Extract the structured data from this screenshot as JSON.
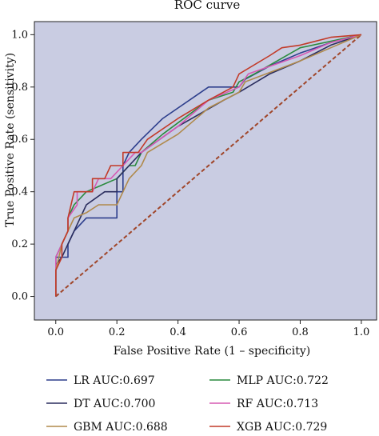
{
  "chart_data": {
    "type": "line",
    "title": "ROC curve",
    "xlabel": "False Positive Rate (1 – specificity)",
    "ylabel": "True Positive Rate (sensitivity)",
    "xlim": [
      -0.07,
      1.05
    ],
    "ylim": [
      -0.09,
      1.05
    ],
    "xticks": [
      "0.0",
      "0.2",
      "0.4",
      "0.6",
      "0.8",
      "1.0"
    ],
    "yticks": [
      "0.0",
      "0.2",
      "0.4",
      "0.6",
      "0.8",
      "1.0"
    ],
    "grid": false,
    "legend_position": "bottom",
    "background_color": "#c9cce2",
    "reference_line": {
      "x": [
        0,
        1
      ],
      "y": [
        0,
        1
      ],
      "color": "#a0462a",
      "style": "dashed"
    },
    "series": [
      {
        "name": "LR AUC:0.697",
        "color": "#2d3e8c",
        "x": [
          0,
          0,
          0.04,
          0.04,
          0.06,
          0.1,
          0.2,
          0.2,
          0.22,
          0.22,
          0.24,
          0.28,
          0.35,
          0.5,
          0.6,
          0.62,
          0.7,
          0.8,
          0.9,
          1
        ],
        "y": [
          0,
          0.15,
          0.15,
          0.2,
          0.25,
          0.3,
          0.3,
          0.4,
          0.4,
          0.5,
          0.55,
          0.6,
          0.68,
          0.8,
          0.8,
          0.83,
          0.88,
          0.93,
          0.97,
          1
        ]
      },
      {
        "name": "MLP AUC:0.722",
        "color": "#2a8a3e",
        "x": [
          0,
          0,
          0.02,
          0.02,
          0.04,
          0.04,
          0.06,
          0.1,
          0.14,
          0.2,
          0.24,
          0.26,
          0.28,
          0.35,
          0.5,
          0.58,
          0.6,
          0.65,
          0.8,
          1
        ],
        "y": [
          0,
          0.15,
          0.2,
          0.2,
          0.25,
          0.3,
          0.35,
          0.4,
          0.42,
          0.45,
          0.5,
          0.5,
          0.55,
          0.62,
          0.75,
          0.78,
          0.82,
          0.85,
          0.95,
          1
        ]
      },
      {
        "name": "DT AUC:0.700",
        "color": "#2a2d5e",
        "x": [
          0,
          0,
          0.02,
          0.04,
          0.06,
          0.08,
          0.1,
          0.16,
          0.18,
          0.2,
          0.2,
          0.24,
          0.28,
          0.4,
          0.55,
          0.6,
          0.7,
          0.8,
          0.9,
          1
        ],
        "y": [
          0,
          0.12,
          0.15,
          0.2,
          0.25,
          0.3,
          0.35,
          0.4,
          0.4,
          0.4,
          0.45,
          0.5,
          0.55,
          0.65,
          0.75,
          0.78,
          0.85,
          0.9,
          0.96,
          1
        ]
      },
      {
        "name": "RF AUC:0.713",
        "color": "#d65ab4",
        "x": [
          0,
          0,
          0.02,
          0.04,
          0.04,
          0.07,
          0.07,
          0.12,
          0.14,
          0.18,
          0.22,
          0.26,
          0.28,
          0.4,
          0.5,
          0.6,
          0.63,
          0.8,
          0.9,
          1
        ],
        "y": [
          0,
          0.15,
          0.2,
          0.25,
          0.3,
          0.35,
          0.4,
          0.4,
          0.45,
          0.45,
          0.5,
          0.55,
          0.55,
          0.65,
          0.75,
          0.8,
          0.85,
          0.92,
          0.97,
          1
        ]
      },
      {
        "name": "GBM AUC:0.688",
        "color": "#b08a4c",
        "x": [
          0,
          0,
          0.02,
          0.04,
          0.06,
          0.1,
          0.14,
          0.2,
          0.24,
          0.28,
          0.3,
          0.4,
          0.5,
          0.6,
          0.62,
          0.8,
          0.9,
          1
        ],
        "y": [
          0,
          0.1,
          0.2,
          0.25,
          0.3,
          0.32,
          0.35,
          0.35,
          0.45,
          0.5,
          0.55,
          0.62,
          0.72,
          0.78,
          0.82,
          0.9,
          0.95,
          1
        ]
      },
      {
        "name": "XGB AUC:0.729",
        "color": "#c23a28",
        "x": [
          0,
          0,
          0.02,
          0.02,
          0.04,
          0.04,
          0.06,
          0.08,
          0.12,
          0.12,
          0.16,
          0.18,
          0.2,
          0.22,
          0.22,
          0.27,
          0.3,
          0.4,
          0.5,
          0.58,
          0.6,
          0.7,
          0.74,
          0.8,
          0.9,
          1
        ],
        "y": [
          0,
          0.1,
          0.15,
          0.2,
          0.25,
          0.3,
          0.4,
          0.4,
          0.4,
          0.45,
          0.45,
          0.5,
          0.5,
          0.5,
          0.55,
          0.55,
          0.6,
          0.68,
          0.75,
          0.8,
          0.85,
          0.92,
          0.95,
          0.96,
          0.99,
          1
        ]
      }
    ]
  }
}
